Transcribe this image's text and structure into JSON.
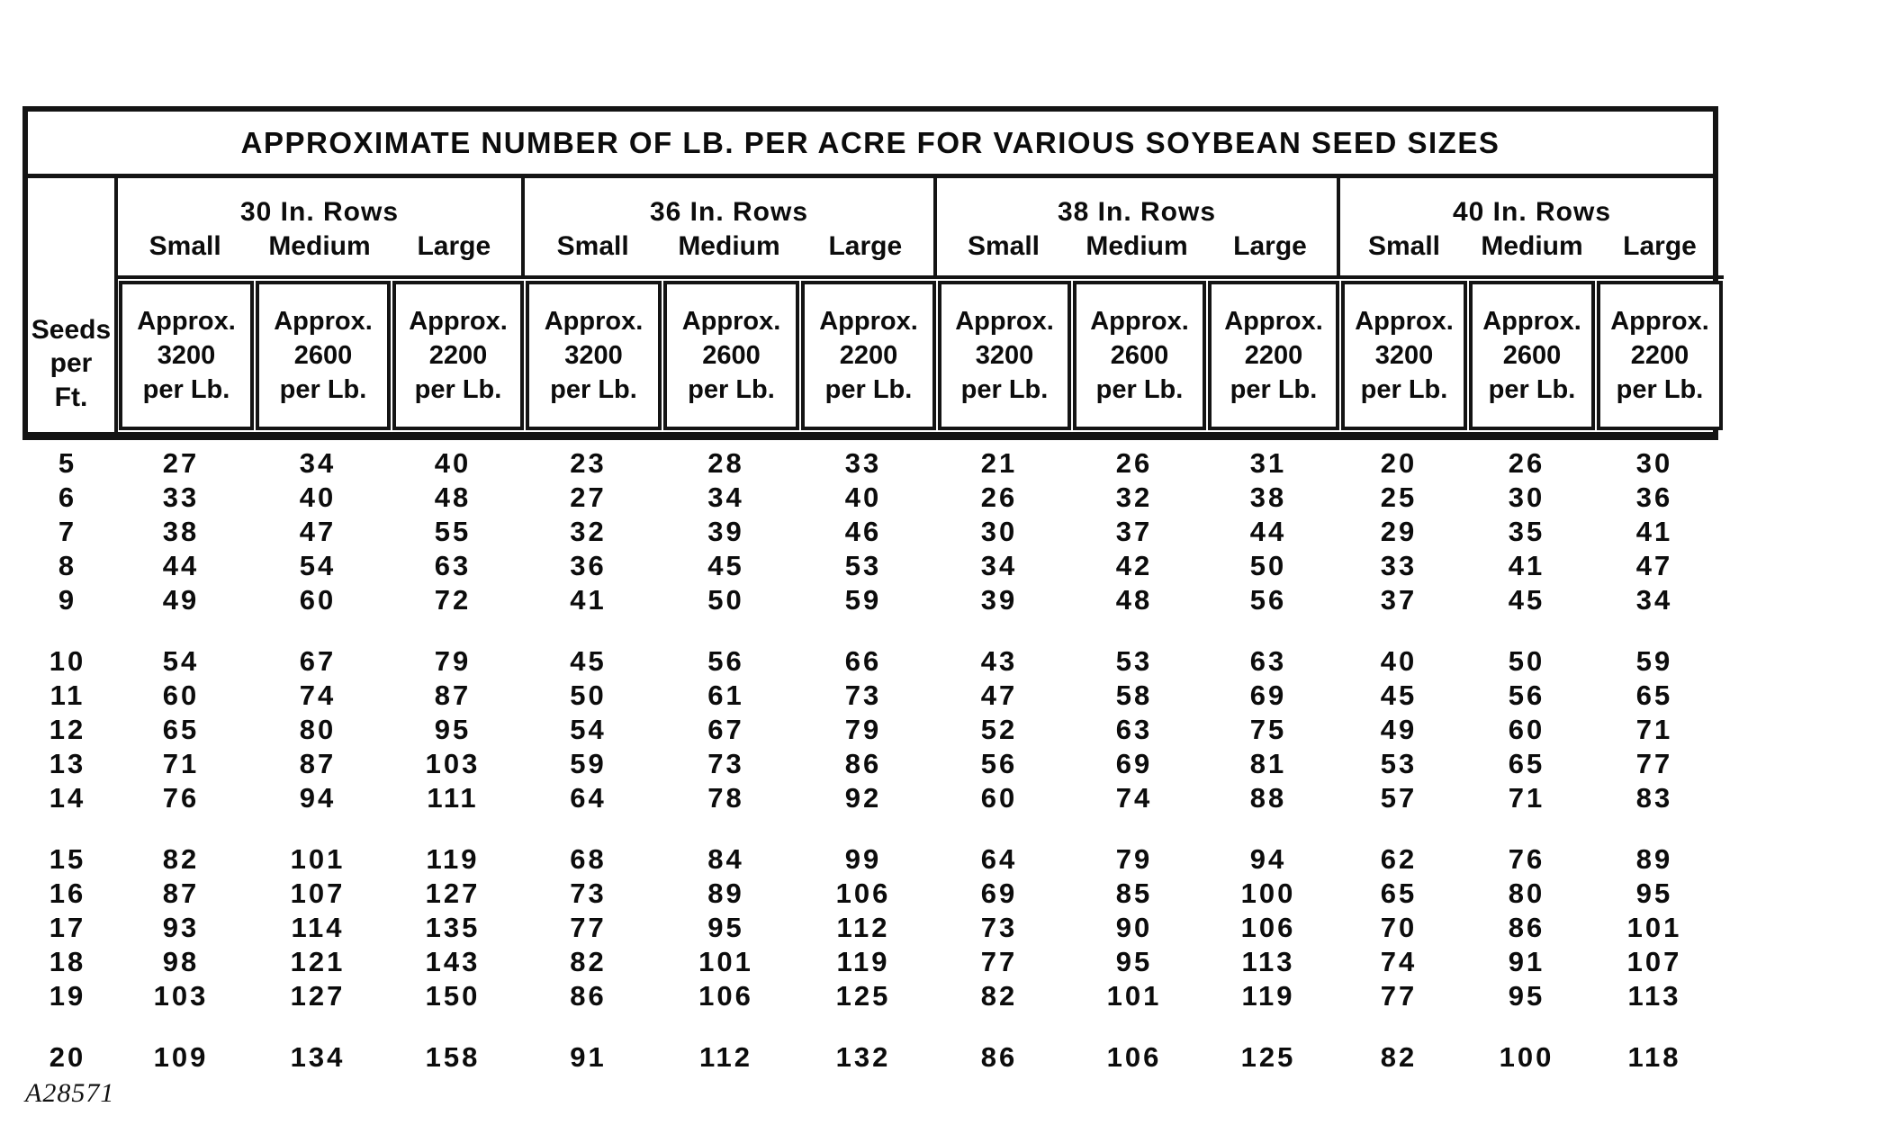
{
  "title": "APPROXIMATE NUMBER OF LB. PER ACRE FOR VARIOUS SOYBEAN SEED SIZES",
  "seeds_header_lines": [
    "Seeds",
    "per",
    "Ft."
  ],
  "groups": [
    {
      "title": "30 In. Rows",
      "sizes": [
        "Small",
        "Medium",
        "Large"
      ],
      "approx_cells": [
        [
          "Approx.",
          "3200",
          "per Lb."
        ],
        [
          "Approx.",
          "2600",
          "per Lb."
        ],
        [
          "Approx.",
          "2200",
          "per Lb."
        ]
      ]
    },
    {
      "title": "36 In. Rows",
      "sizes": [
        "Small",
        "Medium",
        "Large"
      ],
      "approx_cells": [
        [
          "Approx.",
          "3200",
          "per Lb."
        ],
        [
          "Approx.",
          "2600",
          "per Lb."
        ],
        [
          "Approx.",
          "2200",
          "per Lb."
        ]
      ]
    },
    {
      "title": "38 In. Rows",
      "sizes": [
        "Small",
        "Medium",
        "Large"
      ],
      "approx_cells": [
        [
          "Approx.",
          "3200",
          "per Lb."
        ],
        [
          "Approx.",
          "2600",
          "per Lb."
        ],
        [
          "Approx.",
          "2200",
          "per Lb."
        ]
      ]
    },
    {
      "title": "40 In. Rows",
      "sizes": [
        "Small",
        "Medium",
        "Large"
      ],
      "approx_cells": [
        [
          "Approx.",
          "3200",
          "per Lb."
        ],
        [
          "Approx.",
          "2600",
          "per Lb."
        ],
        [
          "Approx.",
          "2200",
          "per Lb."
        ]
      ]
    }
  ],
  "table": {
    "column_keys": [
      "seeds-per-ft",
      "30in-small",
      "30in-medium",
      "30in-large",
      "36in-small",
      "36in-medium",
      "36in-large",
      "38in-small",
      "38in-medium",
      "38in-large",
      "40in-small",
      "40in-medium",
      "40in-large"
    ],
    "row_groups": [
      {
        "rows": [
          [
            5,
            27,
            34,
            40,
            23,
            28,
            33,
            21,
            26,
            31,
            20,
            26,
            30
          ],
          [
            6,
            33,
            40,
            48,
            27,
            34,
            40,
            26,
            32,
            38,
            25,
            30,
            36
          ],
          [
            7,
            38,
            47,
            55,
            32,
            39,
            46,
            30,
            37,
            44,
            29,
            35,
            41
          ],
          [
            8,
            44,
            54,
            63,
            36,
            45,
            53,
            34,
            42,
            50,
            33,
            41,
            47
          ],
          [
            9,
            49,
            60,
            72,
            41,
            50,
            59,
            39,
            48,
            56,
            37,
            45,
            34
          ]
        ]
      },
      {
        "rows": [
          [
            10,
            54,
            67,
            79,
            45,
            56,
            66,
            43,
            53,
            63,
            40,
            50,
            59
          ],
          [
            11,
            60,
            74,
            87,
            50,
            61,
            73,
            47,
            58,
            69,
            45,
            56,
            65
          ],
          [
            12,
            65,
            80,
            95,
            54,
            67,
            79,
            52,
            63,
            75,
            49,
            60,
            71
          ],
          [
            13,
            71,
            87,
            103,
            59,
            73,
            86,
            56,
            69,
            81,
            53,
            65,
            77
          ],
          [
            14,
            76,
            94,
            111,
            64,
            78,
            92,
            60,
            74,
            88,
            57,
            71,
            83
          ]
        ]
      },
      {
        "rows": [
          [
            15,
            82,
            101,
            119,
            68,
            84,
            99,
            64,
            79,
            94,
            62,
            76,
            89
          ],
          [
            16,
            87,
            107,
            127,
            73,
            89,
            106,
            69,
            85,
            100,
            65,
            80,
            95
          ],
          [
            17,
            93,
            114,
            135,
            77,
            95,
            112,
            73,
            90,
            106,
            70,
            86,
            101
          ],
          [
            18,
            98,
            121,
            143,
            82,
            101,
            119,
            77,
            95,
            113,
            74,
            91,
            107
          ],
          [
            19,
            103,
            127,
            150,
            86,
            106,
            125,
            82,
            101,
            119,
            77,
            95,
            113
          ]
        ]
      },
      {
        "rows": [
          [
            20,
            109,
            134,
            158,
            91,
            112,
            132,
            86,
            106,
            125,
            82,
            100,
            118
          ]
        ]
      }
    ]
  },
  "footer_code": "A28571"
}
